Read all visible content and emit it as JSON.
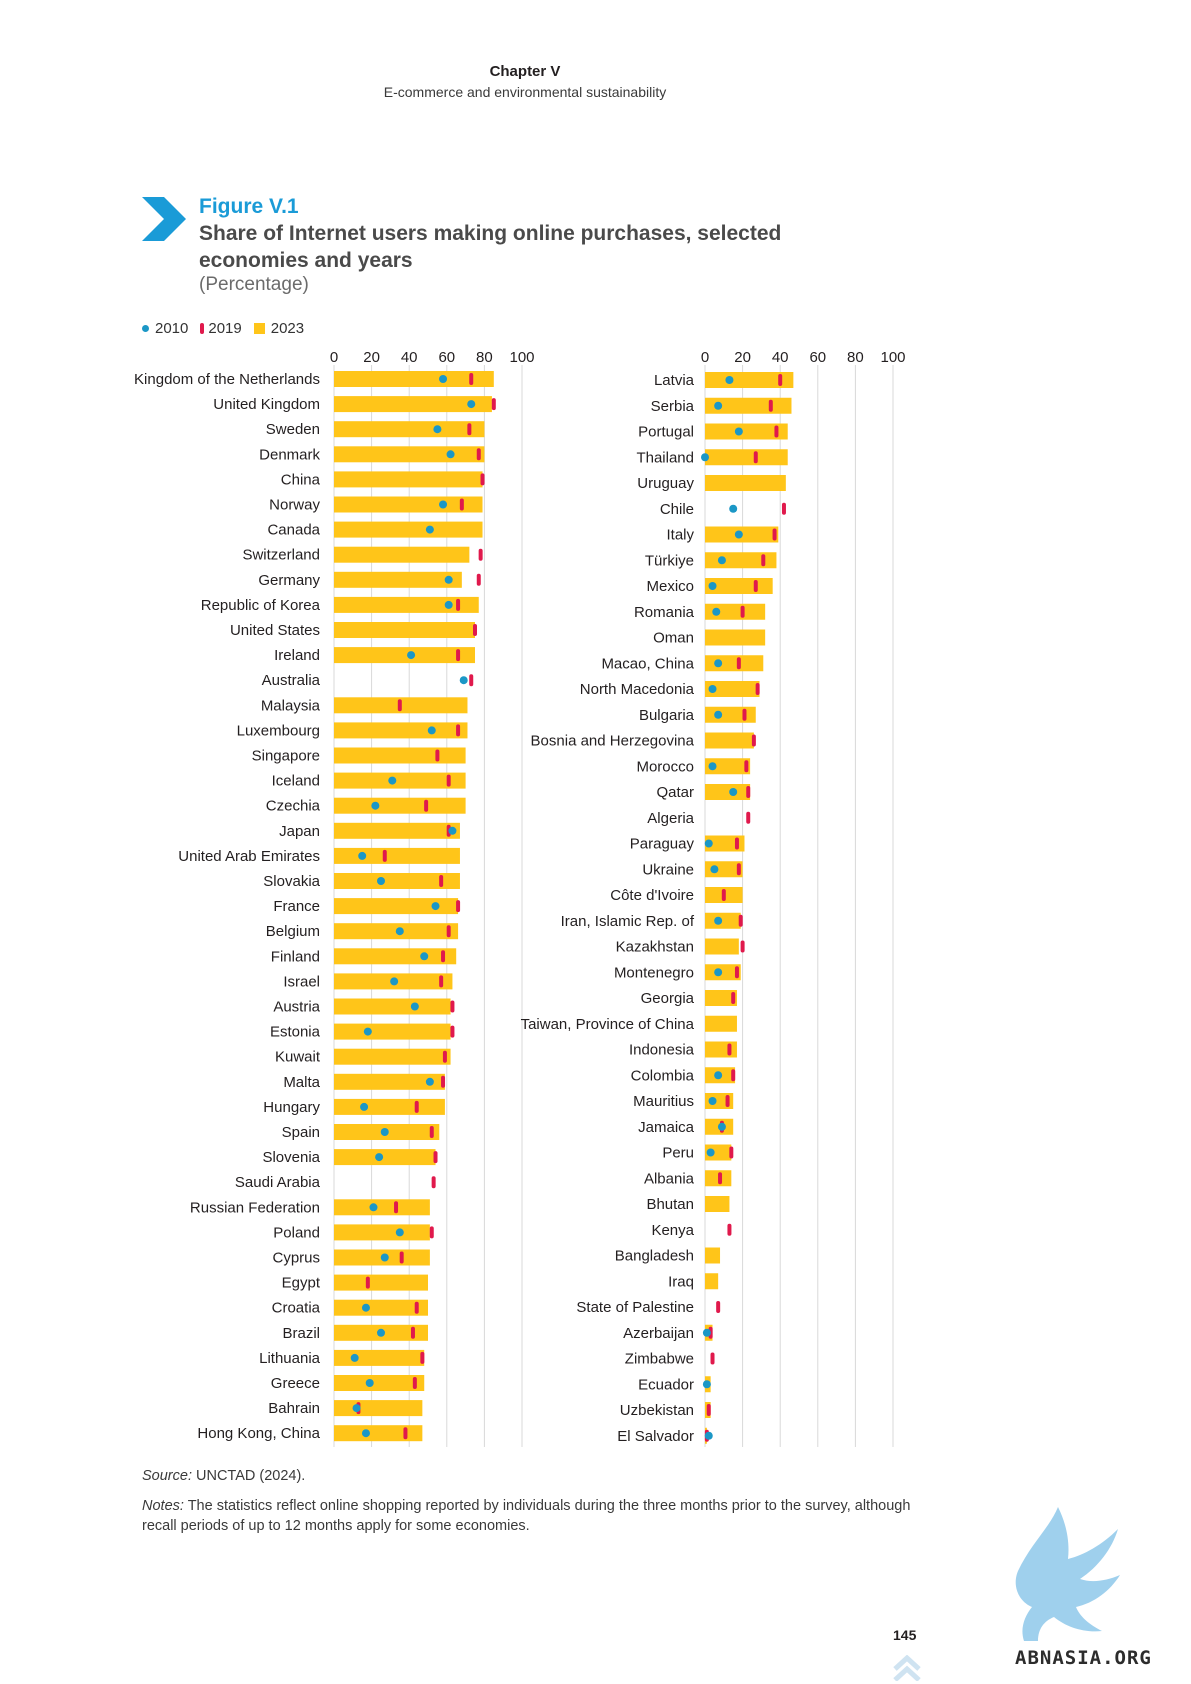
{
  "header": {
    "chapter": "Chapter V",
    "subtitle": "E-commerce and environmental sustainability"
  },
  "figure": {
    "number": "Figure V.1",
    "title": "Share of Internet users making online purchases, selected economies and years",
    "unit": "(Percentage)"
  },
  "legend": {
    "y2010": "2010",
    "y2019": "2019",
    "y2023": "2023"
  },
  "colors": {
    "y2010": "#1b97c6",
    "y2019": "#e0194c",
    "y2023": "#ffc519",
    "accent": "#1a9bd7"
  },
  "chart_data": {
    "type": "bar",
    "xlim": [
      0,
      100
    ],
    "ticks": [
      "0",
      "20",
      "40",
      "60",
      "80",
      "100"
    ],
    "grid": true,
    "legend_position": "top-left",
    "panels": [
      {
        "rows": [
          {
            "name": "Kingdom of the Netherlands",
            "v2023": 85,
            "v2019": 73,
            "v2010": 58
          },
          {
            "name": "United Kingdom",
            "v2023": 84,
            "v2019": 85,
            "v2010": 73
          },
          {
            "name": "Sweden",
            "v2023": 80,
            "v2019": 72,
            "v2010": 55
          },
          {
            "name": "Denmark",
            "v2023": 80,
            "v2019": 77,
            "v2010": 62
          },
          {
            "name": "China",
            "v2023": 79,
            "v2019": 79,
            "v2010": null
          },
          {
            "name": "Norway",
            "v2023": 79,
            "v2019": 68,
            "v2010": 58
          },
          {
            "name": "Canada",
            "v2023": 79,
            "v2019": null,
            "v2010": 51
          },
          {
            "name": "Switzerland",
            "v2023": 72,
            "v2019": 78,
            "v2010": null
          },
          {
            "name": "Germany",
            "v2023": 68,
            "v2019": 77,
            "v2010": 61
          },
          {
            "name": "Republic of Korea",
            "v2023": 77,
            "v2019": 66,
            "v2010": 61
          },
          {
            "name": "United States",
            "v2023": 75,
            "v2019": 75,
            "v2010": null
          },
          {
            "name": "Ireland",
            "v2023": 75,
            "v2019": 66,
            "v2010": 41
          },
          {
            "name": "Australia",
            "v2023": null,
            "v2019": 73,
            "v2010": 69
          },
          {
            "name": "Malaysia",
            "v2023": 71,
            "v2019": 35,
            "v2010": null
          },
          {
            "name": "Luxembourg",
            "v2023": 71,
            "v2019": 66,
            "v2010": 52
          },
          {
            "name": "Singapore",
            "v2023": 70,
            "v2019": 55,
            "v2010": null
          },
          {
            "name": "Iceland",
            "v2023": 70,
            "v2019": 61,
            "v2010": 31
          },
          {
            "name": "Czechia",
            "v2023": 70,
            "v2019": 49,
            "v2010": 22
          },
          {
            "name": "Japan",
            "v2023": 67,
            "v2019": 61,
            "v2010": 63
          },
          {
            "name": "United Arab Emirates",
            "v2023": 67,
            "v2019": 27,
            "v2010": 15
          },
          {
            "name": "Slovakia",
            "v2023": 67,
            "v2019": 57,
            "v2010": 25
          },
          {
            "name": "France",
            "v2023": 66,
            "v2019": 66,
            "v2010": 54
          },
          {
            "name": "Belgium",
            "v2023": 66,
            "v2019": 61,
            "v2010": 35
          },
          {
            "name": "Finland",
            "v2023": 65,
            "v2019": 58,
            "v2010": 48
          },
          {
            "name": "Israel",
            "v2023": 63,
            "v2019": 57,
            "v2010": 32
          },
          {
            "name": "Austria",
            "v2023": 62,
            "v2019": 63,
            "v2010": 43
          },
          {
            "name": "Estonia",
            "v2023": 62,
            "v2019": 63,
            "v2010": 18
          },
          {
            "name": "Kuwait",
            "v2023": 62,
            "v2019": 59,
            "v2010": null
          },
          {
            "name": "Malta",
            "v2023": 59,
            "v2019": 58,
            "v2010": 51
          },
          {
            "name": "Hungary",
            "v2023": 59,
            "v2019": 44,
            "v2010": 16
          },
          {
            "name": "Spain",
            "v2023": 56,
            "v2019": 52,
            "v2010": 27
          },
          {
            "name": "Slovenia",
            "v2023": 54,
            "v2019": 54,
            "v2010": 24
          },
          {
            "name": "Saudi Arabia",
            "v2023": null,
            "v2019": 53,
            "v2010": null
          },
          {
            "name": "Russian Federation",
            "v2023": 51,
            "v2019": 33,
            "v2010": 21
          },
          {
            "name": "Poland",
            "v2023": 51,
            "v2019": 52,
            "v2010": 35
          },
          {
            "name": "Cyprus",
            "v2023": 51,
            "v2019": 36,
            "v2010": 27
          },
          {
            "name": "Egypt",
            "v2023": 50,
            "v2019": 18,
            "v2010": null
          },
          {
            "name": "Croatia",
            "v2023": 50,
            "v2019": 44,
            "v2010": 17
          },
          {
            "name": "Brazil",
            "v2023": 50,
            "v2019": 42,
            "v2010": 25
          },
          {
            "name": "Lithuania",
            "v2023": 48,
            "v2019": 47,
            "v2010": 11
          },
          {
            "name": "Greece",
            "v2023": 48,
            "v2019": 43,
            "v2010": 19
          },
          {
            "name": "Bahrain",
            "v2023": 47,
            "v2019": 13,
            "v2010": 12
          },
          {
            "name": "Hong Kong, China",
            "v2023": 47,
            "v2019": 38,
            "v2010": 17
          }
        ]
      },
      {
        "rows": [
          {
            "name": "Latvia",
            "v2023": 47,
            "v2019": 40,
            "v2010": 13
          },
          {
            "name": "Serbia",
            "v2023": 46,
            "v2019": 35,
            "v2010": 7
          },
          {
            "name": "Portugal",
            "v2023": 44,
            "v2019": 38,
            "v2010": 18
          },
          {
            "name": "Thailand",
            "v2023": 44,
            "v2019": 27,
            "v2010": 0
          },
          {
            "name": "Uruguay",
            "v2023": 43,
            "v2019": null,
            "v2010": null
          },
          {
            "name": "Chile",
            "v2023": null,
            "v2019": 42,
            "v2010": 15
          },
          {
            "name": "Italy",
            "v2023": 39,
            "v2019": 37,
            "v2010": 18
          },
          {
            "name": "Türkiye",
            "v2023": 38,
            "v2019": 31,
            "v2010": 9
          },
          {
            "name": "Mexico",
            "v2023": 36,
            "v2019": 27,
            "v2010": 4
          },
          {
            "name": "Romania",
            "v2023": 32,
            "v2019": 20,
            "v2010": 6
          },
          {
            "name": "Oman",
            "v2023": 32,
            "v2019": null,
            "v2010": null
          },
          {
            "name": "Macao, China",
            "v2023": 31,
            "v2019": 18,
            "v2010": 7
          },
          {
            "name": "North Macedonia",
            "v2023": 29,
            "v2019": 28,
            "v2010": 4
          },
          {
            "name": "Bulgaria",
            "v2023": 27,
            "v2019": 21,
            "v2010": 7
          },
          {
            "name": "Bosnia and Herzegovina",
            "v2023": 26,
            "v2019": 26,
            "v2010": null
          },
          {
            "name": "Morocco",
            "v2023": 24,
            "v2019": 22,
            "v2010": 4
          },
          {
            "name": "Qatar",
            "v2023": 24,
            "v2019": 23,
            "v2010": 15
          },
          {
            "name": "Algeria",
            "v2023": null,
            "v2019": 23,
            "v2010": null
          },
          {
            "name": "Paraguay",
            "v2023": 21,
            "v2019": 17,
            "v2010": 2
          },
          {
            "name": "Ukraine",
            "v2023": 20,
            "v2019": 18,
            "v2010": 5
          },
          {
            "name": "Côte d'Ivoire",
            "v2023": 20,
            "v2019": 10,
            "v2010": null
          },
          {
            "name": "Iran, Islamic Rep. of",
            "v2023": 19,
            "v2019": 19,
            "v2010": 7
          },
          {
            "name": "Kazakhstan",
            "v2023": 18,
            "v2019": 20,
            "v2010": null
          },
          {
            "name": "Montenegro",
            "v2023": 19,
            "v2019": 17,
            "v2010": 7
          },
          {
            "name": "Georgia",
            "v2023": 17,
            "v2019": 15,
            "v2010": null
          },
          {
            "name": "Taiwan, Province of China",
            "v2023": 17,
            "v2019": null,
            "v2010": null
          },
          {
            "name": "Indonesia",
            "v2023": 17,
            "v2019": 13,
            "v2010": null
          },
          {
            "name": "Colombia",
            "v2023": 16,
            "v2019": 15,
            "v2010": 7
          },
          {
            "name": "Mauritius",
            "v2023": 15,
            "v2019": 12,
            "v2010": 4
          },
          {
            "name": "Jamaica",
            "v2023": 15,
            "v2019": 9,
            "v2010": 9
          },
          {
            "name": "Peru",
            "v2023": 14,
            "v2019": 14,
            "v2010": 3
          },
          {
            "name": "Albania",
            "v2023": 14,
            "v2019": 8,
            "v2010": null
          },
          {
            "name": "Bhutan",
            "v2023": 13,
            "v2019": null,
            "v2010": null
          },
          {
            "name": "Kenya",
            "v2023": null,
            "v2019": 13,
            "v2010": null
          },
          {
            "name": "Bangladesh",
            "v2023": 8,
            "v2019": null,
            "v2010": null
          },
          {
            "name": "Iraq",
            "v2023": 7,
            "v2019": null,
            "v2010": null
          },
          {
            "name": "State of Palestine",
            "v2023": null,
            "v2019": 7,
            "v2010": null
          },
          {
            "name": "Azerbaijan",
            "v2023": 4,
            "v2019": 3,
            "v2010": 1
          },
          {
            "name": "Zimbabwe",
            "v2023": null,
            "v2019": 4,
            "v2010": null
          },
          {
            "name": "Ecuador",
            "v2023": 3,
            "v2019": null,
            "v2010": 1
          },
          {
            "name": "Uzbekistan",
            "v2023": 3,
            "v2019": 2,
            "v2010": null
          },
          {
            "name": "El Salvador",
            "v2023": 1,
            "v2019": 1,
            "v2010": 2
          }
        ]
      }
    ]
  },
  "source": {
    "label": "Source:",
    "text": " UNCTAD (2024)."
  },
  "notes": {
    "label": "Notes:",
    "text": " The statistics reflect online shopping reported by individuals during the three months prior to the survey, although recall periods of up to 12 months apply for some economies."
  },
  "page_number": "145",
  "watermark": "ABNASIA.ORG"
}
